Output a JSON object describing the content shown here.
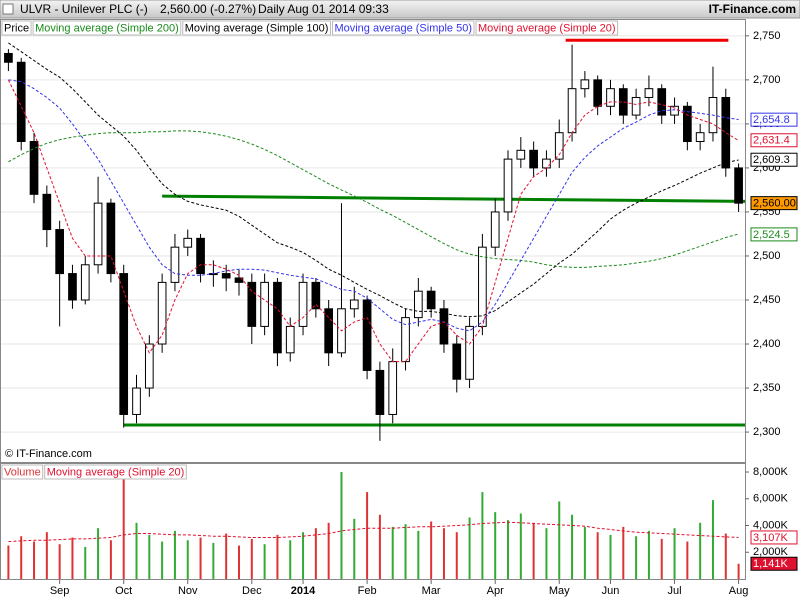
{
  "header": {
    "symbol": "ULVR - Unilever PLC (-)",
    "quote": "2,560.00 (-0.27%)",
    "period": "Daily  Aug 01 2014 09:33",
    "site": "IT-Finance.com"
  },
  "chart_data": [
    {
      "type": "candlestick",
      "price_name": "Price",
      "watermark": "© IT-Finance.com",
      "ylim": [
        2266,
        2768
      ],
      "yticks": [
        {
          "value": 2300,
          "label": "2,300"
        },
        {
          "value": 2350,
          "label": "2,350"
        },
        {
          "value": 2400,
          "label": "2,400"
        },
        {
          "value": 2450,
          "label": "2,450"
        },
        {
          "value": 2500,
          "label": "2,500"
        },
        {
          "value": 2550,
          "label": "2,550"
        },
        {
          "value": 2600,
          "label": "2,600"
        },
        {
          "value": 2650,
          "label": "2,650"
        },
        {
          "value": 2700,
          "label": "2,700"
        },
        {
          "value": 2750,
          "label": "2,750"
        }
      ],
      "grid": true,
      "up_color": "#ffffff",
      "down_color": "#000000",
      "ohlc": {
        "open": [
          2730,
          2720,
          2630,
          2570,
          2530,
          2480,
          2450,
          2490,
          2560,
          2480,
          2320,
          2350,
          2400,
          2470,
          2510,
          2520,
          2480,
          2480,
          2475,
          2470,
          2420,
          2470,
          2390,
          2420,
          2470,
          2440,
          2390,
          2440,
          2450,
          2370,
          2320,
          2380,
          2430,
          2460,
          2440,
          2400,
          2360,
          2420,
          2510,
          2550,
          2610,
          2620,
          2600,
          2610,
          2640,
          2690,
          2700,
          2670,
          2690,
          2660,
          2680,
          2690,
          2660,
          2670,
          2630,
          2640,
          2680,
          2600
        ],
        "high": [
          2735,
          2725,
          2640,
          2580,
          2540,
          2490,
          2500,
          2590,
          2565,
          2490,
          2365,
          2410,
          2480,
          2525,
          2530,
          2525,
          2495,
          2490,
          2485,
          2480,
          2480,
          2475,
          2430,
          2480,
          2475,
          2450,
          2560,
          2465,
          2455,
          2380,
          2395,
          2440,
          2475,
          2465,
          2450,
          2410,
          2430,
          2525,
          2565,
          2620,
          2635,
          2630,
          2620,
          2655,
          2740,
          2710,
          2705,
          2700,
          2695,
          2690,
          2705,
          2695,
          2680,
          2675,
          2650,
          2715,
          2690,
          2605
        ],
        "low": [
          2710,
          2620,
          2560,
          2510,
          2420,
          2440,
          2445,
          2480,
          2470,
          2305,
          2310,
          2340,
          2390,
          2460,
          2500,
          2470,
          2465,
          2460,
          2455,
          2400,
          2410,
          2375,
          2380,
          2410,
          2430,
          2375,
          2385,
          2430,
          2360,
          2290,
          2310,
          2370,
          2420,
          2430,
          2390,
          2345,
          2350,
          2410,
          2500,
          2540,
          2600,
          2590,
          2590,
          2600,
          2630,
          2680,
          2660,
          2660,
          2650,
          2655,
          2670,
          2650,
          2650,
          2620,
          2620,
          2630,
          2590,
          2550
        ],
        "close": [
          2720,
          2630,
          2570,
          2530,
          2480,
          2450,
          2490,
          2560,
          2480,
          2320,
          2350,
          2400,
          2470,
          2510,
          2520,
          2480,
          2480,
          2475,
          2470,
          2420,
          2470,
          2390,
          2420,
          2470,
          2440,
          2390,
          2440,
          2450,
          2370,
          2320,
          2380,
          2430,
          2460,
          2440,
          2400,
          2360,
          2420,
          2510,
          2550,
          2610,
          2620,
          2600,
          2610,
          2640,
          2690,
          2700,
          2670,
          2690,
          2660,
          2680,
          2690,
          2660,
          2670,
          2630,
          2640,
          2680,
          2600,
          2560
        ]
      },
      "series": [
        {
          "name": "Moving average (Simple 200)",
          "color": "#1a8a1a",
          "values": [
            2607,
            2615,
            2622,
            2628,
            2632,
            2635,
            2637,
            2639,
            2640,
            2640,
            2640,
            2641,
            2641,
            2642,
            2642,
            2641,
            2639,
            2636,
            2632,
            2627,
            2621,
            2614,
            2606,
            2598,
            2590,
            2582,
            2575,
            2568,
            2561,
            2553,
            2546,
            2538,
            2530,
            2522,
            2514,
            2507,
            2502,
            2499,
            2497,
            2496,
            2495,
            2493,
            2490,
            2488,
            2487,
            2487,
            2488,
            2489,
            2490,
            2492,
            2494,
            2497,
            2501,
            2506,
            2511,
            2516,
            2521,
            2525
          ]
        },
        {
          "name": "Moving average (Simple 100)",
          "color": "#000000",
          "values": [
            2742,
            2732,
            2722,
            2712,
            2703,
            2690,
            2675,
            2660,
            2648,
            2636,
            2620,
            2600,
            2582,
            2570,
            2562,
            2558,
            2555,
            2552,
            2545,
            2535,
            2525,
            2515,
            2510,
            2504,
            2495,
            2485,
            2478,
            2470,
            2462,
            2455,
            2447,
            2440,
            2437,
            2437,
            2435,
            2432,
            2431,
            2432,
            2438,
            2448,
            2458,
            2468,
            2480,
            2492,
            2502,
            2515,
            2528,
            2542,
            2552,
            2560,
            2567,
            2574,
            2580,
            2587,
            2594,
            2600,
            2606,
            2609
          ]
        },
        {
          "name": "Moving average (Simple 50)",
          "color": "#3333ee",
          "values": [
            2700,
            2698,
            2690,
            2680,
            2668,
            2650,
            2630,
            2610,
            2585,
            2560,
            2535,
            2510,
            2490,
            2480,
            2478,
            2478,
            2480,
            2483,
            2485,
            2485,
            2484,
            2481,
            2478,
            2476,
            2474,
            2468,
            2462,
            2460,
            2452,
            2440,
            2428,
            2422,
            2425,
            2428,
            2425,
            2418,
            2415,
            2425,
            2445,
            2470,
            2495,
            2520,
            2545,
            2570,
            2595,
            2612,
            2625,
            2635,
            2645,
            2652,
            2660,
            2665,
            2666,
            2664,
            2662,
            2660,
            2657,
            2655
          ]
        },
        {
          "name": "Moving average (Simple 20)",
          "color": "#e0102f",
          "values": [
            2700,
            2670,
            2640,
            2600,
            2560,
            2520,
            2500,
            2500,
            2500,
            2460,
            2420,
            2390,
            2410,
            2450,
            2480,
            2490,
            2490,
            2485,
            2478,
            2460,
            2450,
            2440,
            2420,
            2430,
            2445,
            2430,
            2415,
            2425,
            2430,
            2400,
            2380,
            2380,
            2400,
            2420,
            2425,
            2410,
            2400,
            2420,
            2470,
            2520,
            2570,
            2590,
            2600,
            2615,
            2640,
            2660,
            2670,
            2675,
            2675,
            2672,
            2675,
            2672,
            2668,
            2660,
            2655,
            2650,
            2640,
            2631
          ]
        }
      ],
      "markers": [
        {
          "value": 2654.8,
          "label": "2,654.8",
          "color": "#3333ee"
        },
        {
          "value": 2631.4,
          "label": "2,631.4",
          "color": "#e0102f"
        },
        {
          "value": 2609.3,
          "label": "2,609.3",
          "color": "#000000"
        },
        {
          "value": 2560,
          "label": "2,560.00",
          "color": "#000000",
          "fill": "#ff9900"
        },
        {
          "value": 2524.5,
          "label": "2,524.5",
          "color": "#1a8a1a"
        }
      ],
      "trendlines": [
        {
          "x": [
            12,
            57.5
          ],
          "values": [
            2568,
            2562
          ],
          "color": "#008000"
        },
        {
          "x": [
            9,
            57.5
          ],
          "values": [
            2308,
            2308
          ],
          "color": "#008000"
        },
        {
          "x": [
            43.5,
            56.2
          ],
          "values": [
            2745,
            2745
          ],
          "color": "#ee0000"
        }
      ]
    },
    {
      "type": "bar",
      "name": "Volume",
      "up_color": "#33aa33",
      "down_color": "#dd3333",
      "ylim": [
        0,
        8600
      ],
      "yticks": [
        {
          "value": 2000,
          "label": "2,000K"
        },
        {
          "value": 4000,
          "label": "4,000K"
        },
        {
          "value": 6000,
          "label": "6,000K"
        },
        {
          "value": 8000,
          "label": "8,000K"
        }
      ],
      "categories": [
        null,
        null,
        null,
        null,
        null,
        null,
        null,
        null,
        null,
        null,
        null,
        null,
        null,
        null,
        null,
        null,
        null,
        null,
        null,
        null,
        null,
        null,
        null,
        null,
        null,
        null,
        null,
        null,
        null,
        null,
        null,
        null,
        null,
        null,
        null,
        null,
        null,
        null,
        null,
        null,
        null,
        null,
        null,
        null,
        null,
        null,
        null,
        null,
        null,
        null,
        null,
        null,
        null,
        null,
        null,
        null,
        null,
        null
      ],
      "xticks": [
        {
          "value": 4,
          "label": "Sep"
        },
        {
          "value": 9,
          "label": "Oct"
        },
        {
          "value": 14,
          "label": "Nov"
        },
        {
          "value": 19,
          "label": "Dec"
        },
        {
          "value": 23,
          "label": "2014"
        },
        {
          "value": 28,
          "label": "Feb"
        },
        {
          "value": 33,
          "label": "Mar"
        },
        {
          "value": 38,
          "label": "Apr"
        },
        {
          "value": 43,
          "label": "May"
        },
        {
          "value": 47,
          "label": "Jun"
        },
        {
          "value": 52,
          "label": "Jul"
        },
        {
          "value": 57,
          "label": "Aug"
        }
      ],
      "values": [
        2500,
        3200,
        2800,
        3500,
        2600,
        3100,
        2400,
        3800,
        2900,
        7500,
        4200,
        3300,
        2800,
        3600,
        2900,
        3100,
        2700,
        3400,
        2500,
        3000,
        2600,
        3300,
        2900,
        3500,
        3800,
        4200,
        8000,
        4500,
        6500,
        4800,
        3900,
        4100,
        3600,
        4300,
        3800,
        3500,
        4600,
        6500,
        5000,
        4400,
        4900,
        4200,
        3800,
        5800,
        4800,
        3900,
        3500,
        3300,
        3900,
        3200,
        3600,
        3000,
        3800,
        2800,
        4200,
        5900,
        3400,
        1141
      ],
      "series": [
        {
          "name": "Moving average (Simple 20)",
          "color": "#e0102f",
          "values": [
            2800,
            2850,
            2900,
            2900,
            2950,
            3000,
            3000,
            3050,
            3100,
            3300,
            3400,
            3400,
            3350,
            3300,
            3300,
            3250,
            3200,
            3200,
            3150,
            3100,
            3100,
            3100,
            3150,
            3200,
            3300,
            3400,
            3600,
            3700,
            3800,
            3800,
            3800,
            3850,
            3900,
            3900,
            3950,
            4000,
            4050,
            4150,
            4200,
            4250,
            4200,
            4150,
            4100,
            4050,
            4000,
            3950,
            3800,
            3700,
            3600,
            3500,
            3450,
            3400,
            3350,
            3300,
            3250,
            3200,
            3150,
            3107
          ]
        }
      ],
      "markers": [
        {
          "value": 3107,
          "label": "3,107K",
          "color": "#e0102f"
        },
        {
          "value": 1141,
          "label": "1,141K",
          "color": "#ffffff",
          "fill": "#e0102f"
        }
      ]
    }
  ]
}
